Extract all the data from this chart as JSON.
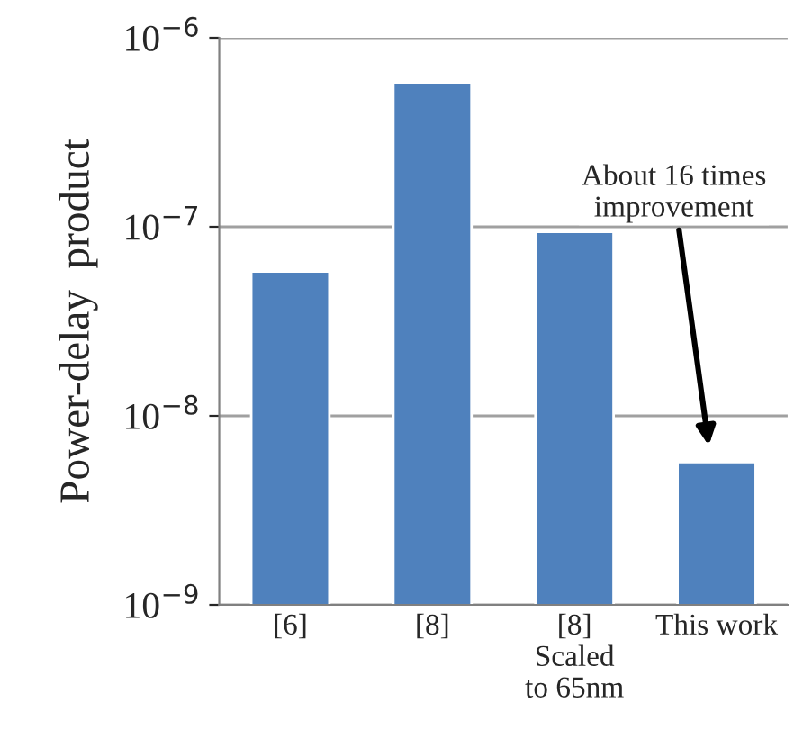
{
  "chart_data": {
    "type": "bar",
    "ylabel": "Power-delay  product",
    "categories": [
      "[6]",
      "[8]",
      "[8]\nScaled\nto 65nm",
      "This work"
    ],
    "values": [
      5.8e-08,
      5.8e-07,
      9.4e-08,
      5.7e-09
    ],
    "color": "#4f81bd",
    "log": "y",
    "ylim": [
      1e-09,
      1e-06
    ],
    "yticks": [
      {
        "value": 1e-09,
        "label": "10$^{−9}$"
      },
      {
        "value": 1e-08,
        "label": "10$^{−8}$"
      },
      {
        "value": 1e-07,
        "label": "10$^{−7}$"
      },
      {
        "value": 1e-06,
        "label": "10$^{−6}$"
      }
    ],
    "grid": "y",
    "annotations": [
      "About 16 times\nimprovement"
    ]
  }
}
